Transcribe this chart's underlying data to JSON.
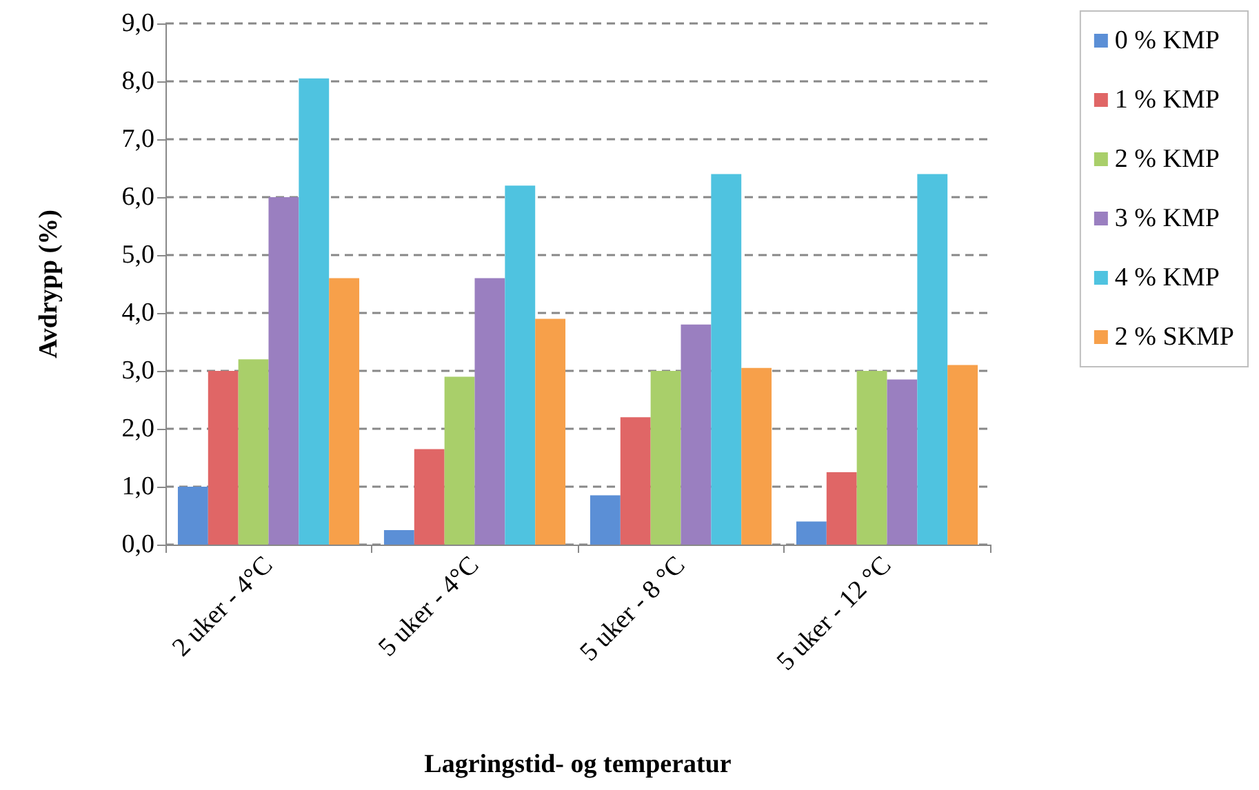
{
  "chart_data": {
    "type": "bar",
    "xlabel": "Lagringstid- og temperatur",
    "ylabel": "Avdrypp (%)",
    "categories": [
      "2 uker - 4°C",
      "5 uker - 4°C",
      "5 uker - 8 °C",
      "5 uker - 12 °C"
    ],
    "series": [
      {
        "name": "0 % KMP",
        "color": "#5b8fd6",
        "values": [
          1.0,
          0.25,
          0.85,
          0.4
        ]
      },
      {
        "name": "1 % KMP",
        "color": "#e06666",
        "values": [
          3.0,
          1.65,
          2.2,
          1.25
        ]
      },
      {
        "name": "2 % KMP",
        "color": "#a9cf6a",
        "values": [
          3.2,
          2.9,
          3.0,
          3.0
        ]
      },
      {
        "name": "3 % KMP",
        "color": "#9a7fc0",
        "values": [
          6.0,
          4.6,
          3.8,
          2.85
        ]
      },
      {
        "name": "4 % KMP",
        "color": "#4fc3e0",
        "values": [
          8.05,
          6.2,
          6.4,
          6.4
        ]
      },
      {
        "name": "2 % SKMP",
        "color": "#f7a04a",
        "values": [
          4.6,
          3.9,
          3.05,
          3.1
        ]
      }
    ],
    "ylim": [
      0,
      9
    ],
    "yticks": [
      {
        "value": 0,
        "label": "0,0"
      },
      {
        "value": 1,
        "label": "1,0"
      },
      {
        "value": 2,
        "label": "2,0"
      },
      {
        "value": 3,
        "label": "3,0"
      },
      {
        "value": 4,
        "label": "4,0"
      },
      {
        "value": 5,
        "label": "5,0"
      },
      {
        "value": 6,
        "label": "6,0"
      },
      {
        "value": 7,
        "label": "7,0"
      },
      {
        "value": 8,
        "label": "8,0"
      },
      {
        "value": 9,
        "label": "9,0"
      }
    ],
    "grid": "y",
    "legend": "right"
  }
}
